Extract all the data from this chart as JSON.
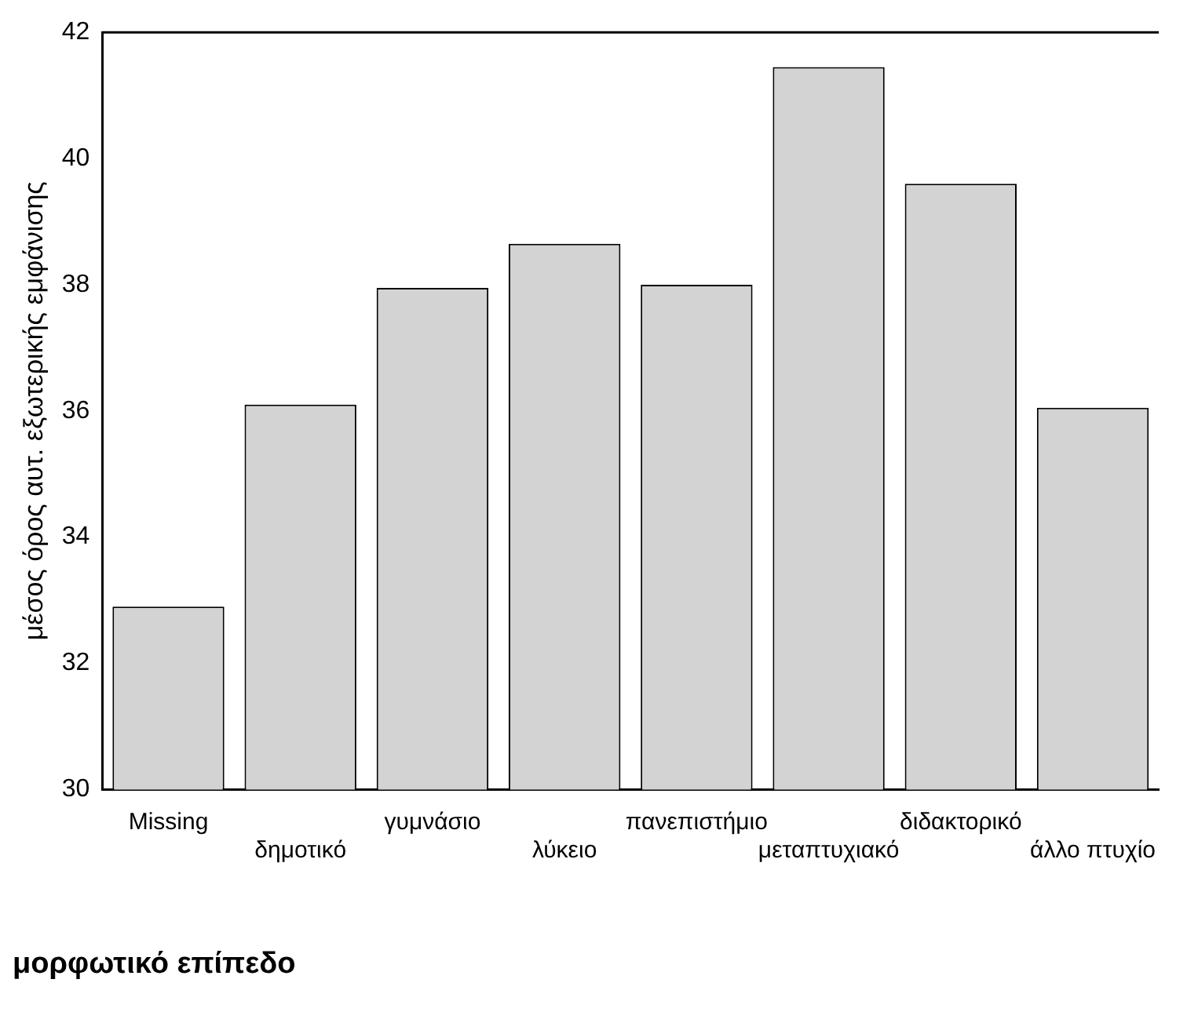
{
  "chart_data": {
    "type": "bar",
    "xlabel": "μορφωτικό επίπεδο",
    "ylabel": "μέσος όρος αυτ. εξωτερικής εμφάνισης",
    "categories": [
      "Missing",
      "δημοτικό",
      "γυμνάσιο",
      "λύκειο",
      "πανεπιστήμιο",
      "μεταπτυχιακό",
      "διδακτορικό",
      "άλλο πτυχίο"
    ],
    "values": [
      32.9,
      36.1,
      37.95,
      38.65,
      38.0,
      41.45,
      39.6,
      36.05
    ],
    "color": "#d3d3d3",
    "ylim": [
      30,
      42
    ],
    "yticks": [
      30,
      32,
      34,
      36,
      38,
      40,
      42
    ],
    "grid": false
  }
}
